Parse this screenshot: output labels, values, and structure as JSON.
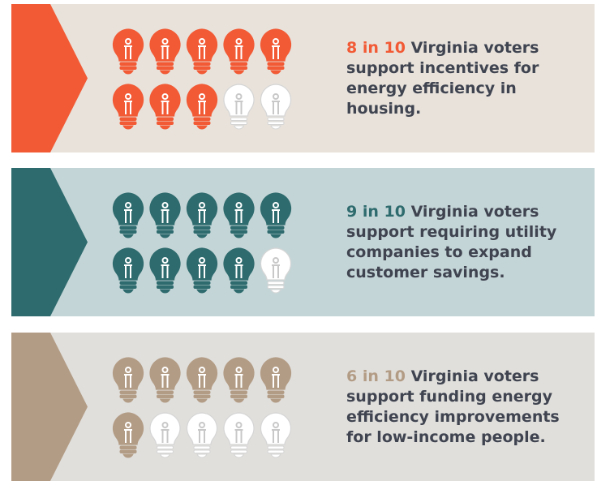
{
  "panels": [
    {
      "highlight": "8 in 10",
      "text": "Virginia voters support incentives for energy efficiency in housing.",
      "filled": 8,
      "total": 10,
      "color": "#f25a35",
      "background": "#e8e2db"
    },
    {
      "highlight": "9 in 10",
      "text": "Virginia voters support requiring utility companies to expand customer savings.",
      "filled": 9,
      "total": 10,
      "color": "#2e6b6e",
      "background": "#c4d5d7"
    },
    {
      "highlight": "6 in 10",
      "text": "Virginia voters support funding energy efficiency improvements for low-income people.",
      "filled": 6,
      "total": 10,
      "color": "#b39c85",
      "background": "#e0dfdc"
    }
  ]
}
